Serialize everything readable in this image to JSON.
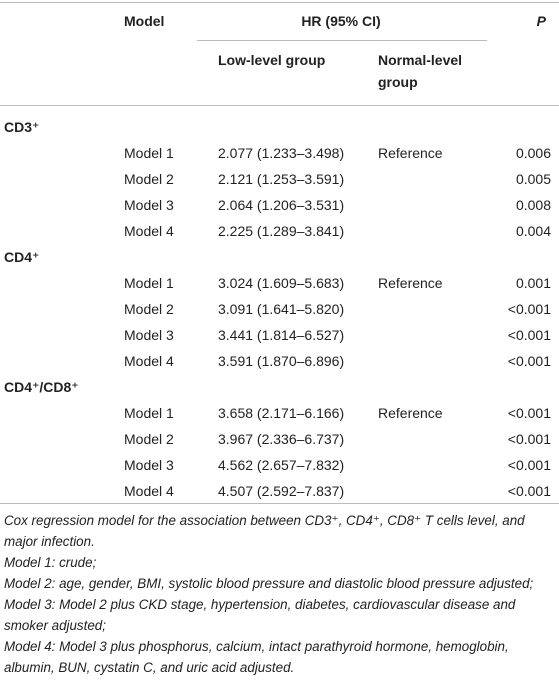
{
  "header": {
    "model": "Model",
    "hr": "HR (95% CI)",
    "p": "P",
    "low": "Low-level group",
    "normal": "Normal-level group"
  },
  "groups": [
    {
      "label": "CD3⁺",
      "rows": [
        {
          "model": "Model 1",
          "hr": "2.077 (1.233–3.498)",
          "normal": "Reference",
          "p": "0.006"
        },
        {
          "model": "Model 2",
          "hr": "2.121 (1.253–3.591)",
          "p": "0.005"
        },
        {
          "model": "Model 3",
          "hr": "2.064 (1.206–3.531)",
          "p": "0.008"
        },
        {
          "model": "Model 4",
          "hr": "2.225 (1.289–3.841)",
          "p": "0.004"
        }
      ]
    },
    {
      "label": "CD4⁺",
      "rows": [
        {
          "model": "Model 1",
          "hr": "3.024 (1.609–5.683)",
          "normal": "Reference",
          "p": "0.001"
        },
        {
          "model": "Model 2",
          "hr": "3.091 (1.641–5.820)",
          "p": "<0.001"
        },
        {
          "model": "Model 3",
          "hr": "3.441 (1.814–6.527)",
          "p": "<0.001"
        },
        {
          "model": "Model 4",
          "hr": "3.591 (1.870–6.896)",
          "p": "<0.001"
        }
      ]
    },
    {
      "label": "CD4⁺/CD8⁺",
      "rows": [
        {
          "model": "Model 1",
          "hr": "3.658 (2.171–6.166)",
          "normal": "Reference",
          "p": "<0.001"
        },
        {
          "model": "Model 2",
          "hr": "3.967 (2.336–6.737)",
          "p": "<0.001"
        },
        {
          "model": "Model 3",
          "hr": "4.562 (2.657–7.832)",
          "p": "<0.001"
        },
        {
          "model": "Model 4",
          "hr": "4.507 (2.592–7.837)",
          "p": "<0.001"
        }
      ]
    }
  ],
  "footnotes": [
    "Cox regression model for the association between CD3⁺, CD4⁺, CD8⁺ T cells level, and major infection.",
    "Model 1: crude;",
    "Model 2: age, gender, BMI, systolic blood pressure and diastolic blood pressure adjusted;",
    "Model 3: Model 2 plus CKD stage, hypertension, diabetes, cardiovascular disease and smoker adjusted;",
    "Model 4: Model 3 plus phosphorus, calcium, intact parathyroid hormone, hemoglobin, albumin, BUN, cystatin C, and uric acid adjusted."
  ]
}
